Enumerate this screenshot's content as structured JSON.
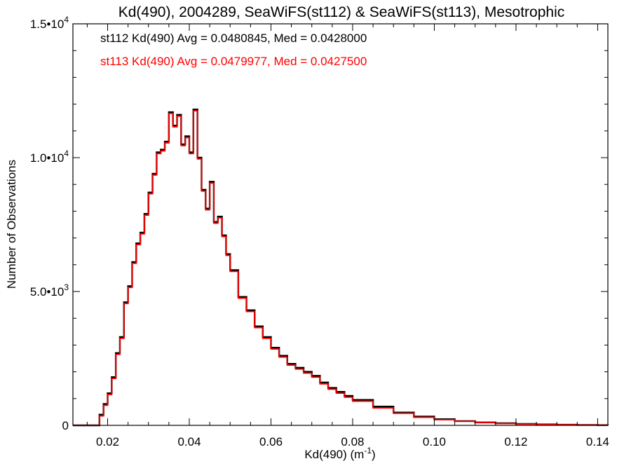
{
  "chart_data": {
    "type": "line",
    "title": "Kd(490), 2004289, SeaWiFS(st112) & SeaWiFS(st113), Mesotrophic",
    "xlabel": "Kd(490) (m",
    "xlabel_sup": "-1",
    "xlabel_tail": ")",
    "ylabel": "Number of Observations",
    "xlim": [
      0.0115,
      0.1425
    ],
    "ylim": [
      0,
      15000
    ],
    "grid": false,
    "x_ticks": [
      {
        "value": 0.02,
        "label": "0.02"
      },
      {
        "value": 0.04,
        "label": "0.04"
      },
      {
        "value": 0.06,
        "label": "0.06"
      },
      {
        "value": 0.08,
        "label": "0.08"
      },
      {
        "value": 0.1,
        "label": "0.10"
      },
      {
        "value": 0.12,
        "label": "0.12"
      },
      {
        "value": 0.14,
        "label": "0.14"
      }
    ],
    "y_ticks": [
      {
        "value": 0,
        "label": "0",
        "sup": ""
      },
      {
        "value": 5000,
        "label": "5.0•10",
        "sup": "3"
      },
      {
        "value": 10000,
        "label": "1.0•10",
        "sup": "4"
      },
      {
        "value": 15000,
        "label": "1.5•10",
        "sup": "4"
      }
    ],
    "annotations": [
      {
        "text": "st112 Kd(490) Avg = 0.0480845, Med = 0.0428000",
        "color": "#000000"
      },
      {
        "text": "st113 Kd(490) Avg = 0.0479977, Med = 0.0427500",
        "color": "#ff0000"
      }
    ],
    "series": [
      {
        "color": "#000000",
        "x": [
          0.0115,
          0.0165,
          0.018,
          0.019,
          0.02,
          0.021,
          0.022,
          0.023,
          0.024,
          0.025,
          0.026,
          0.027,
          0.028,
          0.029,
          0.03,
          0.031,
          0.032,
          0.033,
          0.034,
          0.035,
          0.036,
          0.037,
          0.038,
          0.039,
          0.04,
          0.041,
          0.042,
          0.043,
          0.044,
          0.045,
          0.046,
          0.047,
          0.048,
          0.049,
          0.05,
          0.052,
          0.054,
          0.056,
          0.058,
          0.06,
          0.062,
          0.064,
          0.066,
          0.068,
          0.07,
          0.072,
          0.074,
          0.076,
          0.078,
          0.08,
          0.085,
          0.09,
          0.095,
          0.1,
          0.105,
          0.11,
          0.115,
          0.12,
          0.125,
          0.13,
          0.135,
          0.14,
          0.1425
        ],
        "y": [
          0,
          0,
          400,
          800,
          1200,
          1800,
          2700,
          3300,
          4600,
          5200,
          6100,
          6800,
          7200,
          7900,
          8700,
          9400,
          10200,
          10300,
          10600,
          11700,
          11200,
          11600,
          10500,
          10800,
          10200,
          11800,
          10000,
          8800,
          8100,
          9100,
          7600,
          7800,
          7100,
          6400,
          5800,
          4800,
          4300,
          3700,
          3300,
          2900,
          2600,
          2300,
          2150,
          2000,
          1850,
          1600,
          1400,
          1250,
          1100,
          950,
          700,
          480,
          330,
          230,
          160,
          110,
          80,
          55,
          38,
          25,
          15,
          8,
          5
        ]
      },
      {
        "color": "#ff0000",
        "x": [
          0.0115,
          0.0165,
          0.018,
          0.019,
          0.02,
          0.021,
          0.022,
          0.023,
          0.024,
          0.025,
          0.026,
          0.027,
          0.028,
          0.029,
          0.03,
          0.031,
          0.032,
          0.033,
          0.034,
          0.035,
          0.036,
          0.037,
          0.038,
          0.039,
          0.04,
          0.041,
          0.042,
          0.043,
          0.044,
          0.045,
          0.046,
          0.047,
          0.048,
          0.049,
          0.05,
          0.052,
          0.054,
          0.056,
          0.058,
          0.06,
          0.062,
          0.064,
          0.066,
          0.068,
          0.07,
          0.072,
          0.074,
          0.076,
          0.078,
          0.08,
          0.085,
          0.09,
          0.095,
          0.1,
          0.105,
          0.11,
          0.115,
          0.12,
          0.125,
          0.13,
          0.135,
          0.14,
          0.1425
        ],
        "y": [
          0,
          0,
          350,
          750,
          1150,
          1750,
          2650,
          3250,
          4550,
          5150,
          6050,
          6750,
          7150,
          7850,
          8650,
          9350,
          10150,
          10250,
          10550,
          11650,
          11150,
          11550,
          10450,
          10750,
          10150,
          11750,
          9950,
          8750,
          8050,
          9050,
          7550,
          7750,
          7050,
          6350,
          5750,
          4750,
          4250,
          3650,
          3250,
          2850,
          2550,
          2250,
          2100,
          1950,
          1800,
          1550,
          1350,
          1200,
          1050,
          900,
          650,
          450,
          300,
          210,
          150,
          100,
          70,
          50,
          35,
          22,
          13,
          7,
          4
        ]
      }
    ]
  }
}
